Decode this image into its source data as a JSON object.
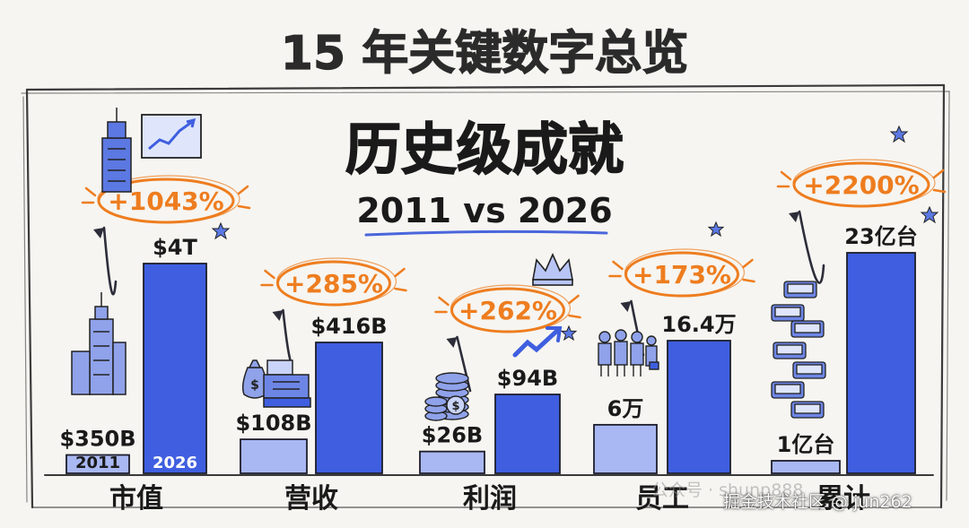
{
  "page": {
    "main_title": "15 年关键数字总览",
    "headline": "历史级成就",
    "subtitle": "2011 vs 2026"
  },
  "colors": {
    "bar_2011": "#a9b8f2",
    "bar_2026": "#3f5fe0",
    "bar_outline": "#1d1d2b",
    "badge": "#ee7d1f",
    "ink": "#1a1a1a",
    "paper": "#f6f5f1",
    "star": "#5b79e3"
  },
  "chart_data": {
    "type": "bar",
    "title": "历史级成就",
    "subtitle": "2011 vs 2026",
    "xlabel": "",
    "ylabel": "",
    "grid": false,
    "legend": "none",
    "series": [
      {
        "name": "2011",
        "color": "#a9b8f2"
      },
      {
        "name": "2026",
        "color": "#3f5fe0"
      }
    ],
    "groups": [
      {
        "category": "市值",
        "unit": "USD",
        "value_2011": 350,
        "value_2026": 4000,
        "label_2011": "$350B",
        "label_2026": "$4T",
        "growth": "+1043%",
        "icons": [
          "skyscraper-icon",
          "stock-chart-icon"
        ]
      },
      {
        "category": "营收",
        "unit": "USD",
        "value_2011": 108,
        "value_2026": 416,
        "label_2011": "$108B",
        "label_2026": "$416B",
        "growth": "+285%",
        "icons": [
          "money-bag-icon",
          "cash-register-icon"
        ]
      },
      {
        "category": "利润",
        "unit": "USD",
        "value_2011": 26,
        "value_2026": 94,
        "label_2011": "$26B",
        "label_2026": "$94B",
        "growth": "+262%",
        "icons": [
          "coin-stack-icon",
          "crown-icon",
          "trend-arrow-icon"
        ]
      },
      {
        "category": "员工",
        "unit": "人",
        "value_2011": 6,
        "value_2026": 16.4,
        "label_2011": "6万",
        "label_2026": "16.4万",
        "growth": "+173%",
        "icons": [
          "people-group-icon"
        ]
      },
      {
        "category": "累计",
        "unit": "台",
        "value_2011": 1,
        "value_2026": 23,
        "label_2011": "1亿台",
        "label_2026": "23亿台",
        "growth": "+2200%",
        "icons": [
          "phone-stack-icon"
        ]
      }
    ]
  },
  "watermarks": {
    "wechat": "公众号 · shunp888",
    "juejin": "掘金技术社区 @ jun262"
  }
}
